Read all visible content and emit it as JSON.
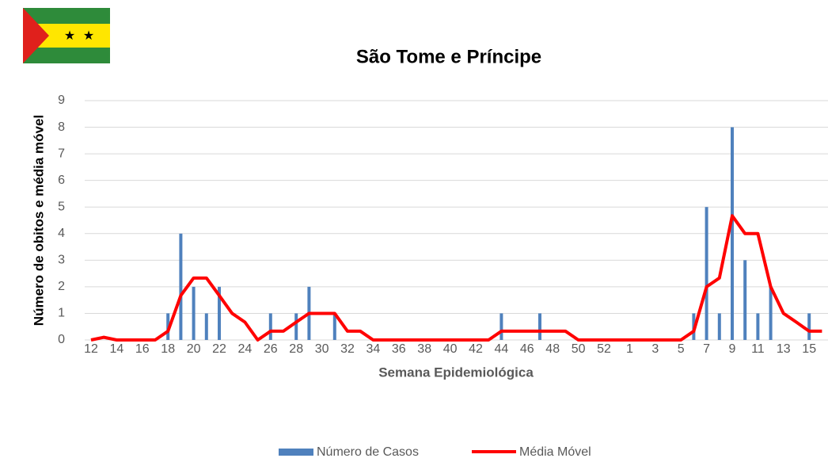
{
  "chart_data": {
    "type": "bar_line",
    "title": "São Tome e Príncipe",
    "x_label": "Semana Epidemiológica",
    "y_label": "Número de obitos e média móvel",
    "categories": [
      "12",
      null,
      "14",
      null,
      "16",
      null,
      "18",
      null,
      "20",
      null,
      "22",
      null,
      "24",
      null,
      "26",
      null,
      "28",
      null,
      "30",
      null,
      "32",
      null,
      "34",
      null,
      "36",
      null,
      "38",
      null,
      "40",
      null,
      "42",
      null,
      "44",
      null,
      "46",
      null,
      "48",
      null,
      "50",
      null,
      "52",
      null,
      "1",
      null,
      "3",
      null,
      "5",
      null,
      "7",
      null,
      "9",
      null,
      "11",
      null,
      "13",
      null,
      "15",
      null
    ],
    "series": [
      {
        "name": "Número de Casos",
        "type": "bar",
        "color": "#4f81bd",
        "values": [
          0,
          0,
          0,
          0,
          0,
          0,
          1,
          4,
          2,
          1,
          2,
          0,
          0,
          0,
          1,
          0,
          1,
          2,
          0,
          1,
          0,
          0,
          0,
          0,
          0,
          0,
          0,
          0,
          0,
          0,
          0,
          0,
          1,
          0,
          0,
          1,
          0,
          0,
          0,
          0,
          0,
          0,
          0,
          0,
          0,
          0,
          0,
          1,
          5,
          1,
          8,
          3,
          1,
          2,
          0,
          0,
          1,
          0
        ]
      },
      {
        "name": "Média Móvel",
        "type": "line",
        "color": "#ff0000",
        "values": [
          0,
          0.1,
          0,
          0,
          0,
          0,
          0.33,
          1.67,
          2.33,
          2.33,
          1.67,
          1,
          0.67,
          0,
          0.33,
          0.33,
          0.67,
          1,
          1,
          1,
          0.33,
          0.33,
          0,
          0,
          0,
          0,
          0,
          0,
          0,
          0,
          0,
          0,
          0.33,
          0.33,
          0.33,
          0.33,
          0.33,
          0.33,
          0,
          0,
          0,
          0,
          0,
          0,
          0,
          0,
          0,
          0.33,
          2,
          2.33,
          4.67,
          4,
          4,
          2,
          1,
          0.67,
          0.33,
          0.33
        ]
      }
    ],
    "ylim": [
      0,
      9
    ],
    "yticks": [
      0,
      1,
      2,
      3,
      4,
      5,
      6,
      7,
      8,
      9
    ],
    "grid": true,
    "legend": "bottom"
  }
}
